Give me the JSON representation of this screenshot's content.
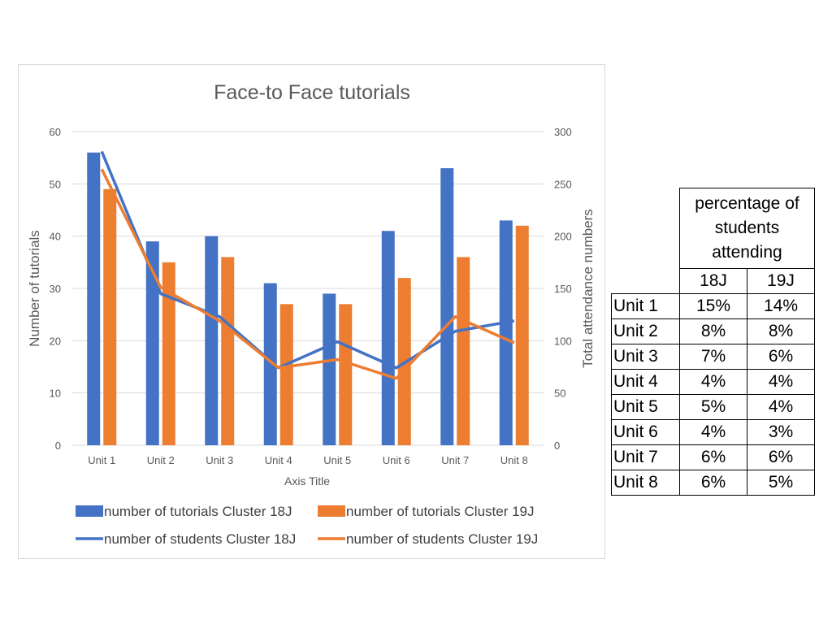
{
  "chart_data": {
    "type": "bar",
    "title": "Face-to Face tutorials",
    "xlabel": "Axis Title",
    "ylabel": "Number of tutorials",
    "y2label": "Total attendance numbers",
    "categories": [
      "Unit 1",
      "Unit 2",
      "Unit 3",
      "Unit 4",
      "Unit 5",
      "Unit 6",
      "Unit 7",
      "Unit 8"
    ],
    "ylim": [
      0,
      60
    ],
    "yticks": [
      "0",
      "10",
      "20",
      "30",
      "40",
      "50",
      "60"
    ],
    "y2lim": [
      0,
      300
    ],
    "y2ticks": [
      "0",
      "50",
      "100",
      "150",
      "200",
      "250",
      "300"
    ],
    "grid": true,
    "series": [
      {
        "name": "number of tutorials Cluster 18J",
        "kind": "bar",
        "axis": "left",
        "color": "#4472c4",
        "values": [
          56,
          39,
          40,
          31,
          29,
          41,
          53,
          43
        ]
      },
      {
        "name": "number of tutorials Cluster 19J",
        "kind": "bar",
        "axis": "left",
        "color": "#ed7d31",
        "values": [
          49,
          35,
          36,
          27,
          27,
          32,
          36,
          42
        ]
      },
      {
        "name": "number of students Cluster 18J",
        "kind": "line",
        "axis": "right",
        "color": "#4472c4",
        "values": [
          281,
          145,
          123,
          74,
          99,
          74,
          109,
          119
        ]
      },
      {
        "name": "number of students Cluster 19J",
        "kind": "line",
        "axis": "right",
        "color": "#ed7d31",
        "values": [
          264,
          151,
          119,
          74,
          82,
          64,
          123,
          98
        ]
      }
    ],
    "legend_position": "bottom"
  },
  "table": {
    "header": "percentage of students attending",
    "columns": [
      "18J",
      "19J"
    ],
    "rows": [
      {
        "label": "Unit 1",
        "v18": "15%",
        "v19": "14%"
      },
      {
        "label": "Unit 2",
        "v18": "8%",
        "v19": "8%"
      },
      {
        "label": "Unit 3",
        "v18": "7%",
        "v19": "6%"
      },
      {
        "label": "Unit 4",
        "v18": "4%",
        "v19": "4%"
      },
      {
        "label": "Unit 5",
        "v18": "5%",
        "v19": "4%"
      },
      {
        "label": "Unit 6",
        "v18": "4%",
        "v19": "3%"
      },
      {
        "label": "Unit 7",
        "v18": "6%",
        "v19": "6%"
      },
      {
        "label": "Unit 8",
        "v18": "6%",
        "v19": "5%"
      }
    ]
  }
}
